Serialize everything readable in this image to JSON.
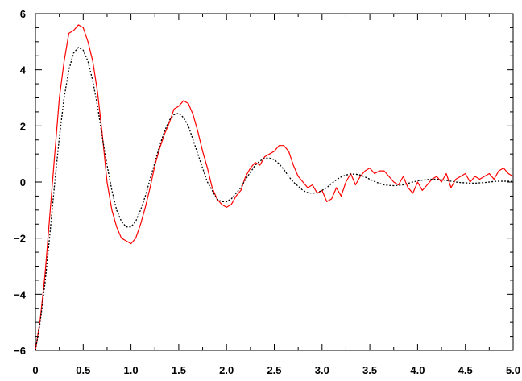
{
  "chart_data": {
    "type": "line",
    "title": "",
    "xlabel": "",
    "ylabel": "",
    "xlim": [
      0,
      5
    ],
    "ylim": [
      -6,
      6
    ],
    "grid": false,
    "x_ticks": [
      0,
      0.5,
      1.0,
      1.5,
      2.0,
      2.5,
      3.0,
      3.5,
      4.0,
      4.5,
      5.0
    ],
    "x_tick_labels": [
      "0",
      "0.5",
      "1.0",
      "1.5",
      "2.0",
      "2.5",
      "3.0",
      "3.5",
      "4.0",
      "4.5",
      "5.0"
    ],
    "y_ticks": [
      -6,
      -4,
      -2,
      0,
      2,
      4,
      6
    ],
    "y_tick_labels": [
      "−6",
      "−4",
      "−2",
      "0",
      "2",
      "4",
      "6"
    ],
    "series": [
      {
        "style": "solid",
        "color": "#ff0000",
        "x": [
          0.0,
          0.05,
          0.1,
          0.15,
          0.2,
          0.25,
          0.3,
          0.35,
          0.4,
          0.45,
          0.5,
          0.55,
          0.6,
          0.65,
          0.7,
          0.75,
          0.8,
          0.85,
          0.9,
          0.95,
          1.0,
          1.05,
          1.1,
          1.15,
          1.2,
          1.25,
          1.3,
          1.35,
          1.4,
          1.45,
          1.5,
          1.55,
          1.6,
          1.65,
          1.7,
          1.75,
          1.8,
          1.85,
          1.9,
          1.95,
          2.0,
          2.05,
          2.1,
          2.15,
          2.2,
          2.25,
          2.3,
          2.35,
          2.4,
          2.45,
          2.5,
          2.55,
          2.6,
          2.65,
          2.7,
          2.75,
          2.8,
          2.85,
          2.9,
          2.95,
          3.0,
          3.05,
          3.1,
          3.15,
          3.2,
          3.25,
          3.3,
          3.35,
          3.4,
          3.45,
          3.5,
          3.55,
          3.6,
          3.65,
          3.7,
          3.75,
          3.8,
          3.85,
          3.9,
          3.95,
          4.0,
          4.05,
          4.1,
          4.15,
          4.2,
          4.25,
          4.3,
          4.35,
          4.4,
          4.45,
          4.5,
          4.55,
          4.6,
          4.65,
          4.7,
          4.75,
          4.8,
          4.85,
          4.9,
          4.95,
          5.0
        ],
        "y": [
          -6.0,
          -4.9,
          -3.3,
          -1.2,
          0.9,
          3.0,
          4.3,
          5.3,
          5.4,
          5.6,
          5.5,
          5.0,
          4.3,
          3.2,
          1.7,
          0.0,
          -1.0,
          -1.6,
          -2.0,
          -2.1,
          -2.2,
          -2.0,
          -1.5,
          -0.9,
          -0.2,
          0.6,
          1.2,
          1.7,
          2.1,
          2.6,
          2.7,
          2.9,
          2.8,
          2.4,
          1.8,
          1.1,
          0.5,
          -0.2,
          -0.6,
          -0.8,
          -0.9,
          -0.8,
          -0.5,
          -0.3,
          0.2,
          0.5,
          0.7,
          0.6,
          0.9,
          1.0,
          1.1,
          1.3,
          1.3,
          1.1,
          0.6,
          0.2,
          0.0,
          -0.2,
          -0.1,
          -0.4,
          -0.3,
          -0.7,
          -0.6,
          -0.2,
          -0.5,
          0.0,
          0.3,
          -0.1,
          0.2,
          0.4,
          0.5,
          0.3,
          0.4,
          0.4,
          0.2,
          0.0,
          -0.1,
          0.2,
          -0.2,
          -0.4,
          0.0,
          -0.3,
          -0.1,
          0.1,
          0.2,
          0.0,
          0.3,
          -0.2,
          0.1,
          0.2,
          0.3,
          0.0,
          0.2,
          0.1,
          0.2,
          0.3,
          0.1,
          0.4,
          0.5,
          0.3,
          0.2
        ]
      },
      {
        "style": "dotted",
        "color": "#000000",
        "x": [
          0.0,
          0.05,
          0.1,
          0.15,
          0.2,
          0.25,
          0.3,
          0.35,
          0.4,
          0.45,
          0.5,
          0.55,
          0.6,
          0.65,
          0.7,
          0.75,
          0.8,
          0.85,
          0.9,
          0.95,
          1.0,
          1.05,
          1.1,
          1.15,
          1.2,
          1.25,
          1.3,
          1.35,
          1.4,
          1.45,
          1.5,
          1.55,
          1.6,
          1.65,
          1.7,
          1.75,
          1.8,
          1.85,
          1.9,
          1.95,
          2.0,
          2.05,
          2.1,
          2.15,
          2.2,
          2.25,
          2.3,
          2.35,
          2.4,
          2.45,
          2.5,
          2.55,
          2.6,
          2.65,
          2.7,
          2.75,
          2.8,
          2.85,
          2.9,
          2.95,
          3.0,
          3.05,
          3.1,
          3.15,
          3.2,
          3.25,
          3.3,
          3.35,
          3.4,
          3.45,
          3.5,
          3.55,
          3.6,
          3.65,
          3.7,
          3.75,
          3.8,
          3.85,
          3.9,
          3.95,
          4.0,
          4.05,
          4.1,
          4.15,
          4.2,
          4.25,
          4.3,
          4.35,
          4.4,
          4.45,
          4.5,
          4.55,
          4.6,
          4.65,
          4.7,
          4.75,
          4.8,
          4.85,
          4.9,
          4.95,
          5.0
        ],
        "y": [
          -6.0,
          -5.0,
          -3.6,
          -1.9,
          -0.1,
          1.6,
          3.0,
          4.0,
          4.6,
          4.8,
          4.7,
          4.3,
          3.6,
          2.7,
          1.6,
          0.6,
          -0.3,
          -1.0,
          -1.4,
          -1.6,
          -1.6,
          -1.4,
          -1.0,
          -0.5,
          0.1,
          0.7,
          1.3,
          1.8,
          2.2,
          2.4,
          2.45,
          2.3,
          2.0,
          1.5,
          1.0,
          0.5,
          0.0,
          -0.3,
          -0.6,
          -0.7,
          -0.7,
          -0.6,
          -0.4,
          -0.2,
          0.1,
          0.35,
          0.6,
          0.75,
          0.85,
          0.85,
          0.8,
          0.65,
          0.45,
          0.2,
          0.0,
          -0.15,
          -0.3,
          -0.38,
          -0.4,
          -0.38,
          -0.3,
          -0.2,
          -0.05,
          0.08,
          0.18,
          0.25,
          0.28,
          0.28,
          0.25,
          0.18,
          0.1,
          0.02,
          -0.05,
          -0.1,
          -0.12,
          -0.13,
          -0.12,
          -0.1,
          -0.05,
          0.0,
          0.04,
          0.07,
          0.09,
          0.1,
          0.1,
          0.08,
          0.06,
          0.03,
          0.0,
          -0.02,
          -0.03,
          -0.04,
          -0.04,
          -0.03,
          -0.02,
          0.0,
          0.02,
          0.03,
          0.03,
          0.03,
          0.02
        ]
      }
    ]
  }
}
